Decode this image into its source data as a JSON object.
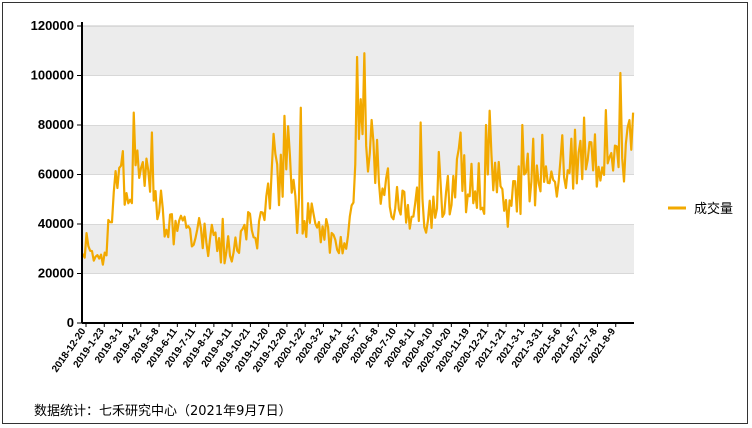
{
  "chart_data": {
    "type": "line",
    "title": "",
    "xlabel": "",
    "ylabel": "",
    "ylim": [
      0,
      120000
    ],
    "y_ticks": [
      0,
      20000,
      40000,
      60000,
      80000,
      100000,
      120000
    ],
    "x_tick_labels": [
      "2018-12-20",
      "2019-1-23",
      "2019-3-1",
      "2019-4-2",
      "2019-5-8",
      "2019-6-11",
      "2019-7-11",
      "2019-8-12",
      "2019-9-11",
      "2019-10-21",
      "2019-11-20",
      "2019-12-20",
      "2020-1-22",
      "2020-3-2",
      "2020-4-1",
      "2020-5-7",
      "2020-6-8",
      "2020-7-10",
      "2020-8-11",
      "2020-9-10",
      "2020-10-20",
      "2020-11-19",
      "2020-12-21",
      "2021-1-21",
      "2021-3-1",
      "2021-3-31",
      "2021-5-6",
      "2021-6-7",
      "2021-7-8",
      "2021-8-9"
    ],
    "grid": "horizontal bands",
    "legend_position": "right",
    "series": [
      {
        "name": "成交量",
        "color": "#F2A900",
        "anchors": [
          [
            0,
            35000
          ],
          [
            1,
            26000
          ],
          [
            2,
            31000
          ],
          [
            3,
            29000
          ],
          [
            4,
            52000
          ],
          [
            5,
            55000
          ],
          [
            6,
            43000
          ],
          [
            7,
            60000
          ],
          [
            8,
            62000
          ],
          [
            9,
            50000
          ],
          [
            10,
            45000
          ],
          [
            11,
            42000
          ],
          [
            12,
            37000
          ],
          [
            13,
            41000
          ],
          [
            14,
            38000
          ],
          [
            15,
            36000
          ],
          [
            16,
            35000
          ],
          [
            17,
            33000
          ],
          [
            18,
            31000
          ],
          [
            19,
            30000
          ],
          [
            20,
            29000
          ],
          [
            21,
            31000
          ],
          [
            22,
            40000
          ],
          [
            23,
            32000
          ],
          [
            24,
            45000
          ],
          [
            25,
            55000
          ],
          [
            26,
            62000
          ],
          [
            27,
            72000
          ],
          [
            28,
            47000
          ],
          [
            29,
            41000
          ],
          [
            30,
            40000
          ],
          [
            31,
            37000
          ],
          [
            32,
            36000
          ],
          [
            33,
            35000
          ],
          [
            34,
            33000
          ],
          [
            35,
            34000
          ],
          [
            36,
            60000
          ],
          [
            37,
            100000
          ],
          [
            38,
            72000
          ],
          [
            39,
            63000
          ],
          [
            40,
            58000
          ],
          [
            41,
            53000
          ],
          [
            42,
            50000
          ],
          [
            43,
            48000
          ],
          [
            44,
            46000
          ],
          [
            45,
            45000
          ],
          [
            46,
            45000
          ],
          [
            47,
            46000
          ],
          [
            48,
            50000
          ],
          [
            49,
            52000
          ],
          [
            50,
            60000
          ],
          [
            51,
            55000
          ],
          [
            52,
            58000
          ],
          [
            53,
            55000
          ],
          [
            54,
            58000
          ],
          [
            55,
            58000
          ],
          [
            56,
            48000
          ],
          [
            57,
            47000
          ],
          [
            58,
            52000
          ],
          [
            59,
            54000
          ],
          [
            60,
            55000
          ],
          [
            61,
            58000
          ],
          [
            62,
            62000
          ],
          [
            63,
            63000
          ],
          [
            64,
            64000
          ],
          [
            65,
            62000
          ],
          [
            66,
            68000
          ],
          [
            67,
            72000
          ],
          [
            68,
            64000
          ],
          [
            69,
            62000
          ],
          [
            70,
            65000
          ],
          [
            71,
            70000
          ],
          [
            72,
            70000
          ],
          [
            73,
            80000
          ]
        ],
        "peaks": [
          [
            28,
            85000
          ],
          [
            38,
            77000
          ],
          [
            109,
            68000
          ],
          [
            120,
            87000
          ],
          [
            151,
            107500
          ],
          [
            155,
            109000
          ],
          [
            186,
            81000
          ],
          [
            222,
            80000
          ],
          [
            242,
            80000
          ],
          [
            253,
            76000
          ],
          [
            276,
            83000
          ],
          [
            288,
            86000
          ],
          [
            296,
            101000
          ]
        ]
      }
    ]
  },
  "legend": {
    "label": "成交量"
  },
  "source_note": "数据统计：七禾研究中心（2021年9月7日）"
}
